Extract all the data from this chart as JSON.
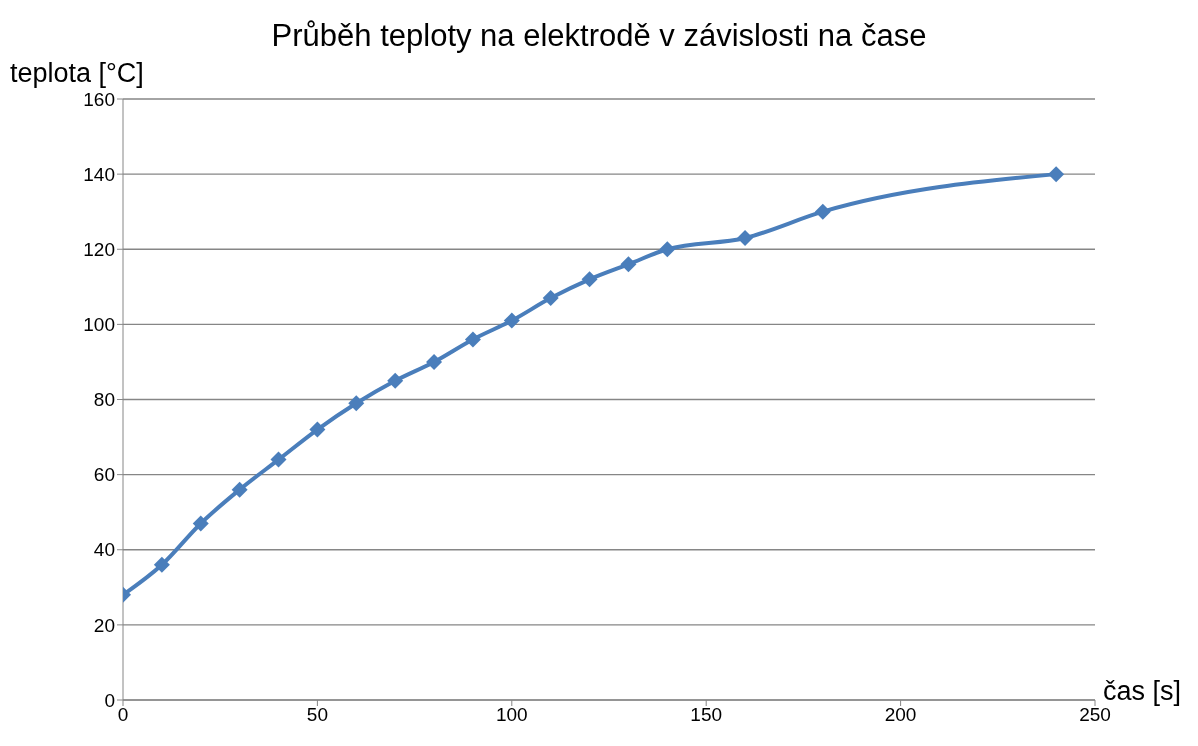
{
  "chart_data": {
    "type": "line",
    "title": "Průběh teploty na elektrodě v závislosti na čase",
    "xlabel": "čas [s]",
    "ylabel": "teplota [°C]",
    "x": [
      0,
      10,
      20,
      30,
      40,
      50,
      60,
      70,
      80,
      90,
      100,
      110,
      120,
      130,
      140,
      160,
      180,
      240
    ],
    "series": [
      {
        "color": "#4a7ebb",
        "values": [
          28,
          36,
          47,
          56,
          64,
          72,
          79,
          85,
          90,
          96,
          101,
          107,
          112,
          116,
          120,
          123,
          130,
          140
        ]
      }
    ],
    "xlim": [
      0,
      250
    ],
    "xticks": [
      0,
      50,
      100,
      150,
      200,
      250
    ],
    "ylim": [
      0,
      160
    ],
    "yticks": [
      0,
      20,
      40,
      60,
      80,
      100,
      120,
      140,
      160
    ],
    "grid": "y",
    "legend": false,
    "marker": "diamond",
    "line_style": "solid"
  }
}
